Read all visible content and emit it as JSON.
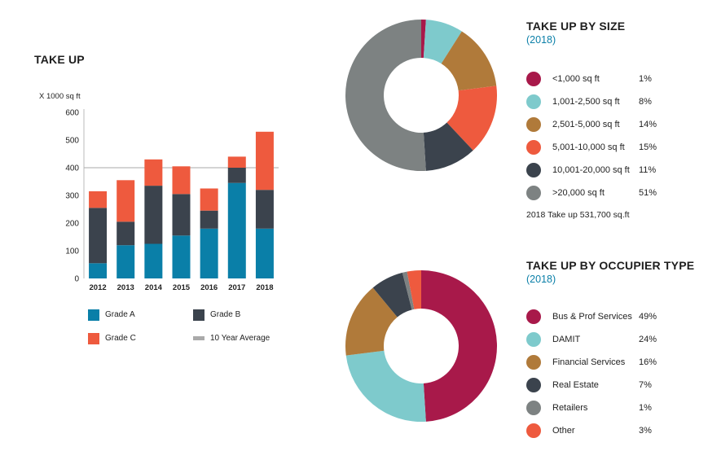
{
  "colors": {
    "grade_a": "#0a7fa8",
    "grade_b": "#3b434d",
    "grade_c": "#ee5a3e",
    "avg": "#aaaaaa",
    "pie": [
      "#a8194a",
      "#7ecacc",
      "#b07a3a",
      "#ee5a3e",
      "#3b434d",
      "#7d8282"
    ]
  },
  "take_up": {
    "title": "TAKE UP",
    "ylabel": "X 1000 sq ft",
    "legend": {
      "a": "Grade A",
      "b": "Grade B",
      "c": "Grade C",
      "avg": "10 Year Average"
    }
  },
  "size": {
    "title": "TAKE UP BY SIZE",
    "subtitle": "(2018)",
    "note": "2018 Take up 531,700 sq.ft",
    "items": [
      {
        "label": "<1,000 sq ft",
        "pct": "1%"
      },
      {
        "label": "1,001-2,500 sq ft",
        "pct": "8%"
      },
      {
        "label": "2,501-5,000 sq ft",
        "pct": "14%"
      },
      {
        "label": "5,001-10,000 sq ft",
        "pct": "15%"
      },
      {
        "label": "10,001-20,000 sq ft",
        "pct": "11%"
      },
      {
        "label": ">20,000 sq ft",
        "pct": "51%"
      }
    ]
  },
  "occupier": {
    "title": "TAKE UP BY OCCUPIER TYPE",
    "subtitle": "(2018)",
    "items": [
      {
        "label": "Bus & Prof Services",
        "pct": "49%"
      },
      {
        "label": "DAMIT",
        "pct": "24%"
      },
      {
        "label": "Financial Services",
        "pct": "16%"
      },
      {
        "label": "Real Estate",
        "pct": "7%"
      },
      {
        "label": "Retailers",
        "pct": "1%"
      },
      {
        "label": "Other",
        "pct": "3%"
      }
    ]
  },
  "chart_data": [
    {
      "type": "bar",
      "stacked": true,
      "title": "TAKE UP",
      "ylabel": "X 1000 sq ft",
      "xlabel": "",
      "categories": [
        "2012",
        "2013",
        "2014",
        "2015",
        "2016",
        "2017",
        "2018"
      ],
      "series": [
        {
          "name": "Grade A",
          "values": [
            55,
            120,
            125,
            155,
            180,
            345,
            180
          ]
        },
        {
          "name": "Grade B",
          "values": [
            200,
            85,
            210,
            150,
            65,
            55,
            140
          ]
        },
        {
          "name": "Grade C",
          "values": [
            60,
            150,
            95,
            100,
            80,
            40,
            210
          ]
        }
      ],
      "average": {
        "name": "10 Year Average",
        "value": 400
      },
      "ylim": [
        0,
        600
      ],
      "yticks": [
        0,
        100,
        200,
        300,
        400,
        500,
        600
      ]
    },
    {
      "type": "pie",
      "donut": true,
      "title": "TAKE UP BY SIZE",
      "subtitle": "(2018)",
      "labels": [
        "<1,000 sq ft",
        "1,001-2,500 sq ft",
        "2,501-5,000 sq ft",
        "5,001-10,000 sq ft",
        "10,001-20,000 sq ft",
        ">20,000 sq ft"
      ],
      "values": [
        1,
        8,
        14,
        15,
        11,
        51
      ]
    },
    {
      "type": "pie",
      "donut": true,
      "title": "TAKE UP BY OCCUPIER TYPE",
      "subtitle": "(2018)",
      "labels": [
        "Bus & Prof Services",
        "DAMIT",
        "Financial Services",
        "Real Estate",
        "Retailers",
        "Other"
      ],
      "values": [
        49,
        24,
        16,
        7,
        1,
        3
      ]
    }
  ]
}
